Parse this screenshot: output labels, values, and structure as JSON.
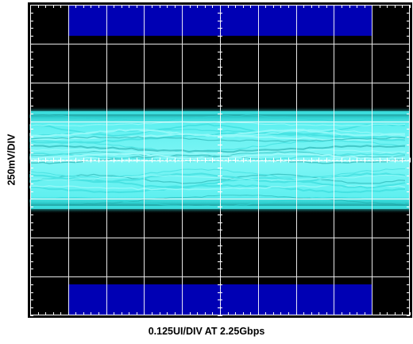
{
  "chart_data": {
    "type": "eye-diagram",
    "ylabel": "250mV/DIV",
    "xlabel": "0.125UI/DIV AT 2.25Gbps",
    "grid": true,
    "grid_divisions": {
      "x": 10,
      "y": 8
    },
    "y_scale_mV_per_div": 250,
    "x_scale_UI_per_div": 0.125,
    "bit_rate_Gbps": 2.25,
    "eye_band_divisions": [
      -1.3,
      1.3
    ],
    "mask": {
      "top_region": {
        "x_div": [
          1,
          9
        ],
        "y_div": [
          3.2,
          4
        ]
      },
      "bottom_region": {
        "x_div": [
          1,
          9
        ],
        "y_div": [
          -4,
          -3.2
        ]
      }
    },
    "colors": {
      "background": "#000000",
      "grid": "#ffffff",
      "trace": "#2fd8d8",
      "trace_bright": "#b8ffff",
      "mask": "#0000b4"
    }
  }
}
